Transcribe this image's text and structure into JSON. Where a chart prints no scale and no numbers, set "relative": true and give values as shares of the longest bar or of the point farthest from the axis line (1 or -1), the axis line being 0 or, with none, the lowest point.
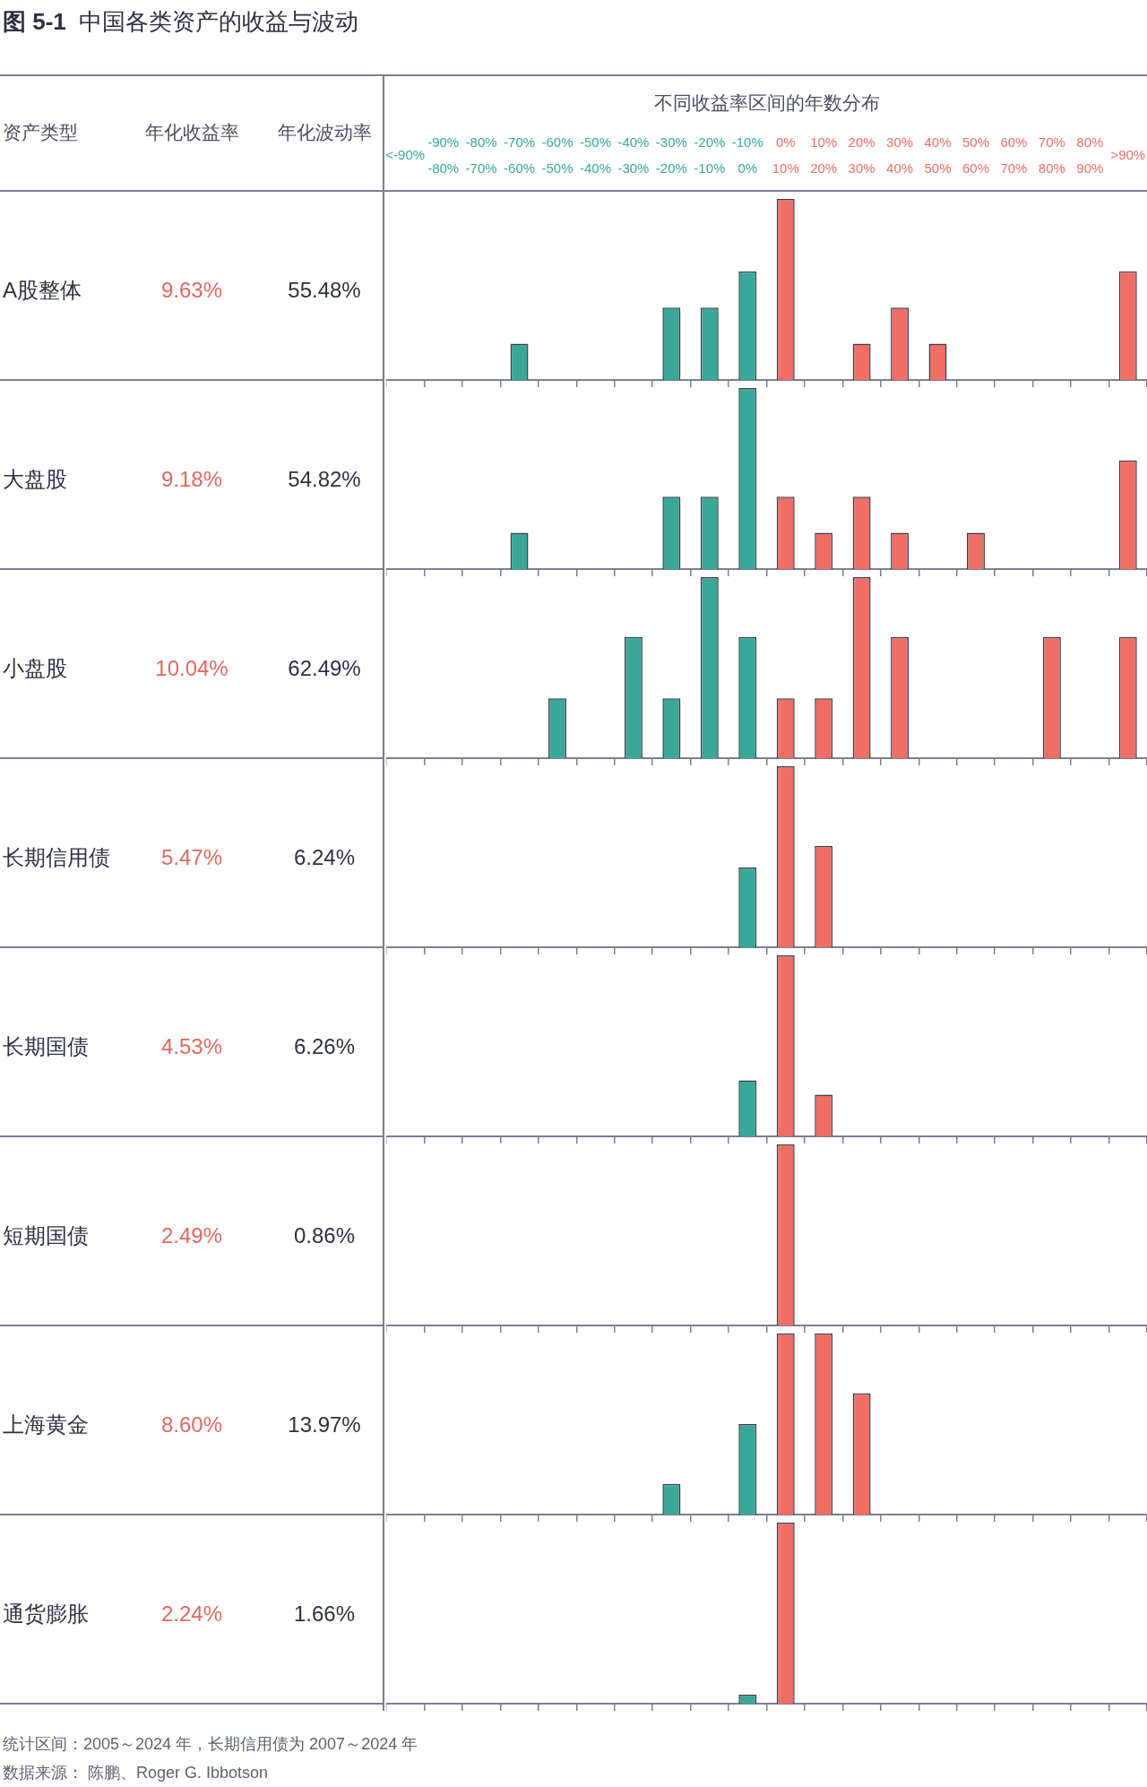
{
  "chart_data": [
    {
      "type": "other",
      "title": "图 5-1 中国各类资产的收益与波动",
      "annotations": [
        "资产类型",
        "年化收益率",
        "年化波动率"
      ]
    },
    {
      "type": "bar",
      "ylabel": "A股整体",
      "annotations": [
        "9.63%",
        "55.48%"
      ],
      "xlabel": "不同收益率区间的年数分布",
      "tick_labels": "x",
      "relative": true,
      "categories": [
        "<-90%",
        "-90%\n-80%",
        "-80%\n-70%",
        "-70%\n-60%",
        "-60%\n-50%",
        "-50%\n-40%",
        "-40%\n-30%",
        "-30%\n-20%",
        "-20%\n-10%",
        "-10%\n0%",
        "0%\n10%",
        "10%\n20%",
        "20%\n30%",
        "30%\n40%",
        "40%\n50%",
        "50%\n60%",
        "60%\n70%",
        "70%\n80%",
        "80%\n90%",
        ">90%"
      ],
      "values": [
        0,
        0,
        0,
        0.2,
        0,
        0,
        0,
        0.4,
        0.4,
        0.6,
        1,
        0,
        0.2,
        0.4,
        0.2,
        0,
        0,
        0,
        0,
        0.6
      ],
      "colors": [
        "#3aa898",
        "#3aa898",
        "#3aa898",
        "#3aa898",
        "#3aa898",
        "#3aa898",
        "#3aa898",
        "#3aa898",
        "#3aa898",
        "#3aa898",
        "#ef6e66",
        "#ef6e66",
        "#ef6e66",
        "#ef6e66",
        "#ef6e66",
        "#ef6e66",
        "#ef6e66",
        "#ef6e66",
        "#ef6e66",
        "#ef6e66"
      ]
    },
    {
      "type": "bar",
      "ylabel": "大盘股",
      "annotations": [
        "9.18%",
        "54.82%"
      ],
      "tick_labels": false,
      "relative": true,
      "categories": [
        null,
        null,
        null,
        null,
        null,
        null,
        null,
        null,
        null,
        null,
        null,
        null,
        null,
        null,
        null,
        null,
        null,
        null,
        null,
        null
      ],
      "values": [
        0,
        0,
        0,
        0.2,
        0,
        0,
        0,
        0.4,
        0.4,
        1,
        0.4,
        0.2,
        0.4,
        0.2,
        0,
        0.2,
        0,
        0,
        0,
        0.6
      ],
      "colors": [
        "#3aa898",
        "#3aa898",
        "#3aa898",
        "#3aa898",
        "#3aa898",
        "#3aa898",
        "#3aa898",
        "#3aa898",
        "#3aa898",
        "#3aa898",
        "#ef6e66",
        "#ef6e66",
        "#ef6e66",
        "#ef6e66",
        "#ef6e66",
        "#ef6e66",
        "#ef6e66",
        "#ef6e66",
        "#ef6e66",
        "#ef6e66"
      ]
    },
    {
      "type": "bar",
      "ylabel": "小盘股",
      "annotations": [
        "10.04%",
        "62.49%"
      ],
      "tick_labels": false,
      "relative": true,
      "categories": [
        null,
        null,
        null,
        null,
        null,
        null,
        null,
        null,
        null,
        null,
        null,
        null,
        null,
        null,
        null,
        null,
        null,
        null,
        null,
        null
      ],
      "values": [
        0,
        0,
        0,
        0,
        0.33,
        0,
        0.67,
        0.33,
        1,
        0.67,
        0.33,
        0.33,
        1,
        0.67,
        0,
        0,
        0,
        0.67,
        0,
        0.67
      ],
      "colors": [
        "#3aa898",
        "#3aa898",
        "#3aa898",
        "#3aa898",
        "#3aa898",
        "#3aa898",
        "#3aa898",
        "#3aa898",
        "#3aa898",
        "#3aa898",
        "#ef6e66",
        "#ef6e66",
        "#ef6e66",
        "#ef6e66",
        "#ef6e66",
        "#ef6e66",
        "#ef6e66",
        "#ef6e66",
        "#ef6e66",
        "#ef6e66"
      ]
    },
    {
      "type": "bar",
      "ylabel": "长期信用债",
      "annotations": [
        "5.47%",
        "6.24%"
      ],
      "tick_labels": false,
      "relative": true,
      "categories": [
        null,
        null,
        null,
        null,
        null,
        null,
        null,
        null,
        null,
        null,
        null,
        null,
        null,
        null,
        null,
        null,
        null,
        null,
        null,
        null
      ],
      "values": [
        0,
        0,
        0,
        0,
        0,
        0,
        0,
        0,
        0,
        0.44,
        1,
        0.56,
        0,
        0,
        0,
        0,
        0,
        0,
        0,
        0
      ],
      "colors": [
        "#3aa898",
        "#3aa898",
        "#3aa898",
        "#3aa898",
        "#3aa898",
        "#3aa898",
        "#3aa898",
        "#3aa898",
        "#3aa898",
        "#3aa898",
        "#ef6e66",
        "#ef6e66",
        "#ef6e66",
        "#ef6e66",
        "#ef6e66",
        "#ef6e66",
        "#ef6e66",
        "#ef6e66",
        "#ef6e66",
        "#ef6e66"
      ]
    },
    {
      "type": "bar",
      "ylabel": "长期国债",
      "annotations": [
        "4.53%",
        "6.26%"
      ],
      "tick_labels": false,
      "relative": true,
      "categories": [
        null,
        null,
        null,
        null,
        null,
        null,
        null,
        null,
        null,
        null,
        null,
        null,
        null,
        null,
        null,
        null,
        null,
        null,
        null,
        null
      ],
      "values": [
        0,
        0,
        0,
        0,
        0,
        0,
        0,
        0,
        0,
        0.31,
        1,
        0.23,
        0,
        0,
        0,
        0,
        0,
        0,
        0,
        0
      ],
      "colors": [
        "#3aa898",
        "#3aa898",
        "#3aa898",
        "#3aa898",
        "#3aa898",
        "#3aa898",
        "#3aa898",
        "#3aa898",
        "#3aa898",
        "#3aa898",
        "#ef6e66",
        "#ef6e66",
        "#ef6e66",
        "#ef6e66",
        "#ef6e66",
        "#ef6e66",
        "#ef6e66",
        "#ef6e66",
        "#ef6e66",
        "#ef6e66"
      ]
    },
    {
      "type": "bar",
      "ylabel": "短期国债",
      "annotations": [
        "2.49%",
        "0.86%"
      ],
      "tick_labels": false,
      "relative": true,
      "categories": [
        null,
        null,
        null,
        null,
        null,
        null,
        null,
        null,
        null,
        null,
        null,
        null,
        null,
        null,
        null,
        null,
        null,
        null,
        null,
        null
      ],
      "values": [
        0,
        0,
        0,
        0,
        0,
        0,
        0,
        0,
        0,
        0,
        1,
        0,
        0,
        0,
        0,
        0,
        0,
        0,
        0,
        0
      ],
      "colors": [
        "#3aa898",
        "#3aa898",
        "#3aa898",
        "#3aa898",
        "#3aa898",
        "#3aa898",
        "#3aa898",
        "#3aa898",
        "#3aa898",
        "#3aa898",
        "#ef6e66",
        "#ef6e66",
        "#ef6e66",
        "#ef6e66",
        "#ef6e66",
        "#ef6e66",
        "#ef6e66",
        "#ef6e66",
        "#ef6e66",
        "#ef6e66"
      ]
    },
    {
      "type": "bar",
      "ylabel": "上海黄金",
      "annotations": [
        "8.60%",
        "13.97%"
      ],
      "tick_labels": false,
      "relative": true,
      "categories": [
        null,
        null,
        null,
        null,
        null,
        null,
        null,
        null,
        null,
        null,
        null,
        null,
        null,
        null,
        null,
        null,
        null,
        null,
        null,
        null
      ],
      "values": [
        0,
        0,
        0,
        0,
        0,
        0,
        0,
        0.17,
        0,
        0.5,
        1,
        1,
        0.67,
        0,
        0,
        0,
        0,
        0,
        0,
        0
      ],
      "colors": [
        "#3aa898",
        "#3aa898",
        "#3aa898",
        "#3aa898",
        "#3aa898",
        "#3aa898",
        "#3aa898",
        "#3aa898",
        "#3aa898",
        "#3aa898",
        "#ef6e66",
        "#ef6e66",
        "#ef6e66",
        "#ef6e66",
        "#ef6e66",
        "#ef6e66",
        "#ef6e66",
        "#ef6e66",
        "#ef6e66",
        "#ef6e66"
      ]
    },
    {
      "type": "bar",
      "ylabel": "通货膨胀",
      "annotations": [
        "2.24%",
        "1.66%"
      ],
      "tick_labels": false,
      "relative": true,
      "categories": [
        null,
        null,
        null,
        null,
        null,
        null,
        null,
        null,
        null,
        null,
        null,
        null,
        null,
        null,
        null,
        null,
        null,
        null,
        null,
        null
      ],
      "values": [
        0,
        0,
        0,
        0,
        0,
        0,
        0,
        0,
        0,
        0.05,
        1,
        0,
        0,
        0,
        0,
        0,
        0,
        0,
        0,
        0
      ],
      "colors": [
        "#3aa898",
        "#3aa898",
        "#3aa898",
        "#3aa898",
        "#3aa898",
        "#3aa898",
        "#3aa898",
        "#3aa898",
        "#3aa898",
        "#3aa898",
        "#ef6e66",
        "#ef6e66",
        "#ef6e66",
        "#ef6e66",
        "#ef6e66",
        "#ef6e66",
        "#ef6e66",
        "#ef6e66",
        "#ef6e66",
        "#ef6e66"
      ]
    },
    {
      "type": "other",
      "annotations": [
        "统计区间：2005～2024 年，长期信用债为 2007～2024 年",
        "数据来源： 陈鹏、Roger G. Ibbotson"
      ]
    }
  ]
}
